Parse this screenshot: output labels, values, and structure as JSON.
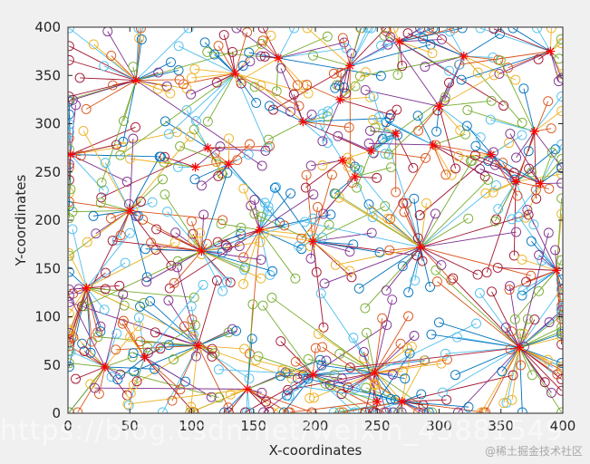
{
  "chart_data": {
    "type": "scatter",
    "title": "",
    "xlabel": "X-coordinates",
    "ylabel": "Y-coordinates",
    "xlim": [
      0,
      400
    ],
    "ylim": [
      0,
      400
    ],
    "xticks": [
      0,
      50,
      100,
      150,
      200,
      250,
      300,
      350,
      400
    ],
    "yticks": [
      0,
      50,
      100,
      150,
      200,
      250,
      300,
      350,
      400
    ],
    "x_tick_labels": [
      "0",
      "50",
      "100",
      "150",
      "200",
      "250",
      "300",
      "350",
      "400"
    ],
    "y_tick_labels": [
      "0",
      "50",
      "100",
      "150",
      "200",
      "250",
      "300",
      "350",
      "400"
    ],
    "grid": false,
    "description": "Clusters of circle markers connected by lines to red star cluster centers",
    "marker_nodes": "circle",
    "marker_centers": "star",
    "center_color": "#ff0000",
    "color_cycle": [
      "#0072BD",
      "#D95319",
      "#EDB120",
      "#7E2F8E",
      "#77AC30",
      "#4DBEEE",
      "#A2142F"
    ],
    "centers": [
      {
        "x": 2,
        "y": 268,
        "n": 22
      },
      {
        "x": 55,
        "y": 345,
        "n": 32
      },
      {
        "x": 135,
        "y": 352,
        "n": 26
      },
      {
        "x": 170,
        "y": 368,
        "n": 16
      },
      {
        "x": 228,
        "y": 360,
        "n": 18
      },
      {
        "x": 268,
        "y": 385,
        "n": 14
      },
      {
        "x": 320,
        "y": 370,
        "n": 14
      },
      {
        "x": 390,
        "y": 375,
        "n": 16
      },
      {
        "x": 113,
        "y": 275,
        "n": 10
      },
      {
        "x": 130,
        "y": 258,
        "n": 10
      },
      {
        "x": 190,
        "y": 302,
        "n": 12
      },
      {
        "x": 220,
        "y": 325,
        "n": 10
      },
      {
        "x": 245,
        "y": 272,
        "n": 8
      },
      {
        "x": 265,
        "y": 290,
        "n": 8
      },
      {
        "x": 295,
        "y": 278,
        "n": 10
      },
      {
        "x": 300,
        "y": 318,
        "n": 12
      },
      {
        "x": 342,
        "y": 268,
        "n": 10
      },
      {
        "x": 377,
        "y": 292,
        "n": 12
      },
      {
        "x": 103,
        "y": 255,
        "n": 6
      },
      {
        "x": 232,
        "y": 245,
        "n": 8
      },
      {
        "x": 222,
        "y": 262,
        "n": 6
      },
      {
        "x": 50,
        "y": 210,
        "n": 26
      },
      {
        "x": 155,
        "y": 190,
        "n": 22
      },
      {
        "x": 198,
        "y": 178,
        "n": 22
      },
      {
        "x": 285,
        "y": 172,
        "n": 36
      },
      {
        "x": 362,
        "y": 240,
        "n": 16
      },
      {
        "x": 382,
        "y": 238,
        "n": 12
      },
      {
        "x": 15,
        "y": 130,
        "n": 30
      },
      {
        "x": 108,
        "y": 168,
        "n": 36
      },
      {
        "x": 395,
        "y": 148,
        "n": 24
      },
      {
        "x": 105,
        "y": 70,
        "n": 32
      },
      {
        "x": 30,
        "y": 48,
        "n": 22
      },
      {
        "x": 62,
        "y": 58,
        "n": 18
      },
      {
        "x": 145,
        "y": 25,
        "n": 22
      },
      {
        "x": 198,
        "y": 40,
        "n": 26
      },
      {
        "x": 248,
        "y": 42,
        "n": 34
      },
      {
        "x": 270,
        "y": 12,
        "n": 24
      },
      {
        "x": 365,
        "y": 68,
        "n": 52
      },
      {
        "x": 250,
        "y": 12,
        "n": 6
      }
    ]
  },
  "watermark": {
    "main": "https://blog.csdn.net/weixin_43881549",
    "corner": "@稀土掘金技术社区"
  }
}
